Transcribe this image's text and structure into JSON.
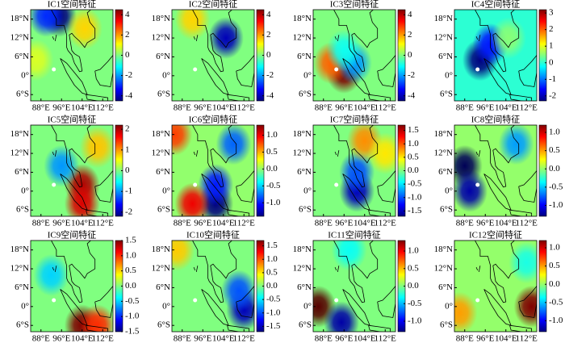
{
  "chart_data": [
    {
      "type": "heatmap",
      "title": "IC1空间特征",
      "xlim": [
        84,
        116
      ],
      "ylim": [
        -8,
        21
      ],
      "xticks": [
        {
          "value": 88,
          "label": "88°E"
        },
        {
          "value": 96,
          "label": "96°E"
        },
        {
          "value": 104,
          "label": "104°E"
        },
        {
          "value": 112,
          "label": "112°E"
        }
      ],
      "yticks": [
        {
          "value": 18,
          "label": "18°N"
        },
        {
          "value": 12,
          "label": "12°N"
        },
        {
          "value": 6,
          "label": "6°N"
        },
        {
          "value": 0,
          "label": "0°"
        },
        {
          "value": -6,
          "label": "6°S"
        }
      ],
      "clim": [
        -4.5,
        4.5
      ],
      "cticks": [
        4,
        2,
        0,
        -2,
        -4
      ],
      "x": [
        95,
        90,
        105,
        86
      ],
      "y": [
        19,
        19,
        15,
        5
      ],
      "values": [
        -4.5,
        -3,
        1.5,
        0.8
      ]
    },
    {
      "type": "heatmap",
      "title": "IC2空间特征",
      "xlim": [
        84,
        116
      ],
      "ylim": [
        -8,
        21
      ],
      "xticks": [
        {
          "value": 88,
          "label": "88°E"
        },
        {
          "value": 96,
          "label": "96°E"
        },
        {
          "value": 104,
          "label": "104°E"
        },
        {
          "value": 112,
          "label": "112°E"
        }
      ],
      "yticks": [
        {
          "value": 18,
          "label": "18°N"
        },
        {
          "value": 12,
          "label": "12°N"
        },
        {
          "value": 6,
          "label": "6°N"
        },
        {
          "value": 0,
          "label": "0°"
        },
        {
          "value": -6,
          "label": "6°S"
        }
      ],
      "clim": [
        -4.5,
        4.5
      ],
      "cticks": [
        4,
        2,
        0,
        -2,
        -4
      ],
      "x": [
        105,
        92
      ],
      "y": [
        12,
        18
      ],
      "values": [
        -4,
        1.5
      ]
    },
    {
      "type": "heatmap",
      "title": "IC3空间特征",
      "xlim": [
        84,
        116
      ],
      "ylim": [
        -8,
        21
      ],
      "xticks": [
        {
          "value": 88,
          "label": "88°E"
        },
        {
          "value": 96,
          "label": "96°E"
        },
        {
          "value": 104,
          "label": "104°E"
        },
        {
          "value": 112,
          "label": "112°E"
        }
      ],
      "yticks": [
        {
          "value": 18,
          "label": "18°N"
        },
        {
          "value": 12,
          "label": "12°N"
        },
        {
          "value": 6,
          "label": "6°N"
        },
        {
          "value": 0,
          "label": "0°"
        },
        {
          "value": -6,
          "label": "6°S"
        }
      ],
      "clim": [
        -4.5,
        4.5
      ],
      "cticks": [
        4,
        2,
        0,
        -2,
        -4
      ],
      "x": [
        96,
        91,
        100,
        96
      ],
      "y": [
        1,
        4,
        4,
        8
      ],
      "values": [
        4.5,
        2.5,
        -2,
        -1
      ]
    },
    {
      "type": "heatmap",
      "title": "IC4空间特征",
      "xlim": [
        84,
        116
      ],
      "ylim": [
        -8,
        21
      ],
      "xticks": [
        {
          "value": 88,
          "label": "88°E"
        },
        {
          "value": 96,
          "label": "96°E"
        },
        {
          "value": 104,
          "label": "104°E"
        },
        {
          "value": 112,
          "label": "112°E"
        }
      ],
      "yticks": [
        {
          "value": 18,
          "label": "18°N"
        },
        {
          "value": 12,
          "label": "12°N"
        },
        {
          "value": 6,
          "label": "6°N"
        },
        {
          "value": 0,
          "label": "0°"
        },
        {
          "value": -6,
          "label": "6°S"
        }
      ],
      "clim": [
        -2.3,
        3.2
      ],
      "cticks": [
        3,
        2,
        1,
        0,
        -1,
        -2
      ],
      "x": [
        94,
        98,
        105
      ],
      "y": [
        5,
        10,
        12
      ],
      "values": [
        -2.3,
        -1.5,
        0.5
      ]
    },
    {
      "type": "heatmap",
      "title": "IC5空间特征",
      "xlim": [
        84,
        116
      ],
      "ylim": [
        -8,
        21
      ],
      "xticks": [
        {
          "value": 88,
          "label": "88°E"
        },
        {
          "value": 96,
          "label": "96°E"
        },
        {
          "value": 104,
          "label": "104°E"
        },
        {
          "value": 112,
          "label": "112°E"
        }
      ],
      "yticks": [
        {
          "value": 18,
          "label": "18°N"
        },
        {
          "value": 12,
          "label": "12°N"
        },
        {
          "value": 6,
          "label": "6°N"
        },
        {
          "value": 0,
          "label": "0°"
        },
        {
          "value": -6,
          "label": "6°S"
        }
      ],
      "clim": [
        -2.2,
        2.2
      ],
      "cticks": [
        2,
        1,
        0,
        -1,
        -2
      ],
      "x": [
        104,
        104,
        96,
        110
      ],
      "y": [
        2,
        -4,
        8,
        14
      ],
      "values": [
        2,
        1.8,
        -1,
        0.8
      ]
    },
    {
      "type": "heatmap",
      "title": "IC6空间特征",
      "xlim": [
        84,
        116
      ],
      "ylim": [
        -8,
        21
      ],
      "xticks": [
        {
          "value": 88,
          "label": "88°E"
        },
        {
          "value": 96,
          "label": "96°E"
        },
        {
          "value": 104,
          "label": "104°E"
        },
        {
          "value": 112,
          "label": "112°E"
        }
      ],
      "yticks": [
        {
          "value": 18,
          "label": "18°N"
        },
        {
          "value": 12,
          "label": "12°N"
        },
        {
          "value": 6,
          "label": "6°N"
        },
        {
          "value": 0,
          "label": "0°"
        },
        {
          "value": -6,
          "label": "6°S"
        }
      ],
      "clim": [
        -1.4,
        1.3
      ],
      "cticks": [
        {
          "value": 1,
          "label": "1.0"
        },
        0.5,
        {
          "value": 0,
          "label": "0.0"
        },
        -0.5,
        {
          "value": -1,
          "label": "-1.0"
        }
      ],
      "x": [
        101,
        101,
        92,
        108,
        85
      ],
      "y": [
        -4,
        2,
        -4,
        15,
        18
      ],
      "values": [
        -1.4,
        -1,
        1,
        -0.8,
        0.8
      ]
    },
    {
      "type": "heatmap",
      "title": "IC7空间特征",
      "xlim": [
        84,
        116
      ],
      "ylim": [
        -8,
        21
      ],
      "xticks": [
        {
          "value": 88,
          "label": "88°E"
        },
        {
          "value": 96,
          "label": "96°E"
        },
        {
          "value": 104,
          "label": "104°E"
        },
        {
          "value": 112,
          "label": "112°E"
        }
      ],
      "yticks": [
        {
          "value": 18,
          "label": "18°N"
        },
        {
          "value": 12,
          "label": "12°N"
        },
        {
          "value": 6,
          "label": "6°N"
        },
        {
          "value": 0,
          "label": "0°"
        },
        {
          "value": -6,
          "label": "6°S"
        }
      ],
      "clim": [
        -1.7,
        1.7
      ],
      "cticks": [
        1.5,
        {
          "value": 1,
          "label": "1.0"
        },
        0.5,
        {
          "value": 0,
          "label": "0.0"
        },
        -0.5,
        {
          "value": -1,
          "label": "-1.0"
        },
        -1.5
      ],
      "x": [
        101,
        101,
        104,
        112
      ],
      "y": [
        0,
        6,
        16,
        12
      ],
      "values": [
        -1.5,
        -1,
        0.8,
        0.5
      ]
    },
    {
      "type": "heatmap",
      "title": "IC8空间特征",
      "xlim": [
        84,
        116
      ],
      "ylim": [
        -8,
        21
      ],
      "xticks": [
        {
          "value": 88,
          "label": "88°E"
        },
        {
          "value": 96,
          "label": "96°E"
        },
        {
          "value": 104,
          "label": "104°E"
        },
        {
          "value": 112,
          "label": "112°E"
        }
      ],
      "yticks": [
        {
          "value": 18,
          "label": "18°N"
        },
        {
          "value": 12,
          "label": "12°N"
        },
        {
          "value": 6,
          "label": "6°N"
        },
        {
          "value": 0,
          "label": "0°"
        },
        {
          "value": -6,
          "label": "6°S"
        }
      ],
      "clim": [
        -1.3,
        1.2
      ],
      "cticks": [
        {
          "value": 1,
          "label": "1.0"
        },
        0.5,
        {
          "value": 0,
          "label": "0.0"
        },
        -0.5,
        {
          "value": -1,
          "label": "-1.0"
        }
      ],
      "x": [
        88,
        90,
        108
      ],
      "y": [
        8,
        0,
        15
      ],
      "values": [
        -1.4,
        -1.2,
        -0.6
      ]
    },
    {
      "type": "heatmap",
      "title": "IC9空间特征",
      "xlim": [
        84,
        116
      ],
      "ylim": [
        -8,
        21
      ],
      "xticks": [
        {
          "value": 88,
          "label": "88°E"
        },
        {
          "value": 96,
          "label": "96°E"
        },
        {
          "value": 104,
          "label": "104°E"
        },
        {
          "value": 112,
          "label": "112°E"
        }
      ],
      "yticks": [
        {
          "value": 18,
          "label": "18°N"
        },
        {
          "value": 12,
          "label": "12°N"
        },
        {
          "value": 6,
          "label": "6°N"
        },
        {
          "value": 0,
          "label": "0°"
        },
        {
          "value": -6,
          "label": "6°S"
        }
      ],
      "clim": [
        -1.5,
        1.5
      ],
      "cticks": [
        1.5,
        {
          "value": 1,
          "label": "1.0"
        },
        0.5,
        {
          "value": 0,
          "label": "0.0"
        },
        -0.5,
        {
          "value": -1,
          "label": "-1.0"
        },
        -1.5
      ],
      "x": [
        104,
        110,
        92
      ],
      "y": [
        -6,
        -6,
        10
      ],
      "values": [
        1.5,
        1,
        -0.5
      ]
    },
    {
      "type": "heatmap",
      "title": "IC10空间特征",
      "xlim": [
        84,
        116
      ],
      "ylim": [
        -8,
        21
      ],
      "xticks": [
        {
          "value": 88,
          "label": "88°E"
        },
        {
          "value": 96,
          "label": "96°E"
        },
        {
          "value": 104,
          "label": "104°E"
        },
        {
          "value": 112,
          "label": "112°E"
        }
      ],
      "yticks": [
        {
          "value": 18,
          "label": "18°N"
        },
        {
          "value": 12,
          "label": "12°N"
        },
        {
          "value": 6,
          "label": "6°N"
        },
        {
          "value": 0,
          "label": "0°"
        },
        {
          "value": -6,
          "label": "6°S"
        }
      ],
      "clim": [
        -1.7,
        1.7
      ],
      "cticks": [
        1.5,
        {
          "value": 1,
          "label": "1.0"
        },
        0.5,
        {
          "value": 0,
          "label": "0.0"
        },
        -0.5,
        {
          "value": -1,
          "label": "-1.0"
        },
        -1.5
      ],
      "x": [
        112,
        110,
        86
      ],
      "y": [
        -1,
        5,
        18
      ],
      "values": [
        -1.5,
        -1,
        0.6
      ]
    },
    {
      "type": "heatmap",
      "title": "IC11空间特征",
      "xlim": [
        84,
        116
      ],
      "ylim": [
        -8,
        21
      ],
      "xticks": [
        {
          "value": 88,
          "label": "88°E"
        },
        {
          "value": 96,
          "label": "96°E"
        },
        {
          "value": 104,
          "label": "104°E"
        },
        {
          "value": 112,
          "label": "112°E"
        }
      ],
      "yticks": [
        {
          "value": 18,
          "label": "18°N"
        },
        {
          "value": 12,
          "label": "12°N"
        },
        {
          "value": 6,
          "label": "6°N"
        },
        {
          "value": 0,
          "label": "0°"
        },
        {
          "value": -6,
          "label": "6°S"
        }
      ],
      "clim": [
        -1.3,
        1.3
      ],
      "cticks": [
        {
          "value": 1,
          "label": "1.0"
        },
        0.5,
        {
          "value": 0,
          "label": "0.0"
        },
        -0.5,
        {
          "value": -1,
          "label": "-1.0"
        }
      ],
      "x": [
        86,
        95,
        98
      ],
      "y": [
        0,
        -5,
        18
      ],
      "values": [
        1.4,
        -1.2,
        -0.3
      ]
    },
    {
      "type": "heatmap",
      "title": "IC12空间特征",
      "xlim": [
        84,
        116
      ],
      "ylim": [
        -8,
        21
      ],
      "xticks": [
        {
          "value": 88,
          "label": "88°E"
        },
        {
          "value": 96,
          "label": "96°E"
        },
        {
          "value": 104,
          "label": "104°E"
        },
        {
          "value": 112,
          "label": "112°E"
        }
      ],
      "yticks": [
        {
          "value": 18,
          "label": "18°N"
        },
        {
          "value": 12,
          "label": "12°N"
        },
        {
          "value": 6,
          "label": "6°N"
        },
        {
          "value": 0,
          "label": "0°"
        },
        {
          "value": -6,
          "label": "6°S"
        }
      ],
      "clim": [
        -1.3,
        1.2
      ],
      "cticks": [
        {
          "value": 1,
          "label": "1.0"
        },
        0.5,
        {
          "value": 0,
          "label": "0.0"
        },
        -0.5,
        {
          "value": -1,
          "label": "-1.0"
        }
      ],
      "x": [
        114,
        86,
        112
      ],
      "y": [
        0,
        -2,
        14
      ],
      "values": [
        1.2,
        0.5,
        -0.3
      ]
    }
  ]
}
